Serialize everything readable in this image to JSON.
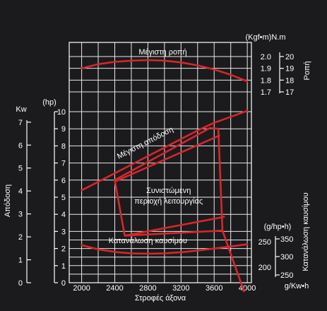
{
  "chart_data": {
    "type": "line",
    "x": [
      2000,
      2400,
      2800,
      3200,
      3600,
      4000
    ],
    "xlabel": "Στροφές άξονα",
    "xlim": [
      1850,
      4050
    ],
    "x_ticks": [
      "2000",
      "2400",
      "2800",
      "3200",
      "3600",
      "4000"
    ],
    "power": {
      "axis_label": "Απόδοση",
      "unit_kw": "Kw",
      "unit_hp": "(hp)",
      "kw_ticks": [
        "0",
        "1",
        "2",
        "3",
        "4",
        "5",
        "6",
        "7"
      ],
      "hp_ticks": [
        "0",
        "1",
        "2",
        "3",
        "4",
        "5",
        "6",
        "7",
        "8",
        "9",
        "10"
      ],
      "hp_lim": [
        0,
        10
      ]
    },
    "torque": {
      "axis_label": "Ροπή",
      "unit": "(Kgf•m)N.m",
      "kgfm_ticks": [
        "1.7",
        "1.8",
        "1.9",
        "2.0"
      ],
      "nm_ticks": [
        "17",
        "18",
        "19",
        "20"
      ],
      "kgfm_lim": [
        1.7,
        2.0
      ]
    },
    "consumption": {
      "axis_label": "Κατανάλωση καυσίμου",
      "unit_g_hp_h": "(g/hp•h)",
      "unit_g_kw_h": "g/Kw•h",
      "g_hp_h_ticks": [
        "200",
        "250"
      ],
      "g_kw_h_ticks": [
        "250",
        "300",
        "350"
      ]
    },
    "series": [
      {
        "name": "Μέγιστη ροπή",
        "axis": "torque",
        "x": [
          2000,
          2200,
          2400,
          2600,
          2800,
          3000,
          3200,
          3400,
          3600,
          3800,
          4000
        ],
        "y": [
          1.9,
          1.935,
          1.955,
          1.965,
          1.97,
          1.965,
          1.95,
          1.925,
          1.89,
          1.845,
          1.79
        ]
      },
      {
        "name": "Μέγιστη απόδοση",
        "axis": "hp",
        "x": [
          2000,
          2200,
          2400,
          2600,
          2800,
          3000,
          3200,
          3400,
          3600,
          3800,
          4000
        ],
        "y": [
          5.4,
          5.9,
          6.4,
          6.9,
          7.4,
          7.9,
          8.4,
          8.9,
          9.35,
          9.7,
          10.05
        ]
      },
      {
        "name": "Κατανάλωση καυσίμου",
        "axis": "hp",
        "x": [
          2000,
          2200,
          2400,
          2600,
          2800,
          3000,
          3200,
          3400,
          3600,
          3800,
          4000
        ],
        "y": [
          2.2,
          1.95,
          1.8,
          1.72,
          1.7,
          1.72,
          1.78,
          1.88,
          2.0,
          2.12,
          2.25
        ]
      },
      {
        "name": "Συνιστώμενη περιοχή λειτουργίας",
        "axis": "hp",
        "closed": true,
        "x": [
          2400,
          3550,
          3650,
          3700,
          2520
        ],
        "y": [
          6.0,
          9.05,
          9.0,
          3.05,
          2.75
        ]
      },
      {
        "name": "",
        "axis": "hp",
        "x": [
          2420,
          3660
        ],
        "y": [
          5.95,
          8.6
        ]
      },
      {
        "name": "",
        "axis": "hp",
        "x": [
          2520,
          3720
        ],
        "y": [
          2.75,
          3.85
        ]
      },
      {
        "name": "",
        "axis": "hp",
        "x": [
          3700,
          3960
        ],
        "y": [
          3.05,
          -0.5
        ]
      }
    ],
    "annotations": {
      "torque_curve": "Μέγιστη ροπή",
      "power_curve": "Μέγιστη απόδοση",
      "region_line1": "Συνιστώμενη",
      "region_line2": "περιοχή λειτουργίας",
      "consumption_curve": "Κατανάλωση καυσίμου"
    },
    "grid": true,
    "colors": {
      "background": "#1b1b1d",
      "grid": "#e8e8e8",
      "curve": "#d7262b",
      "text": "#ffffff"
    }
  }
}
